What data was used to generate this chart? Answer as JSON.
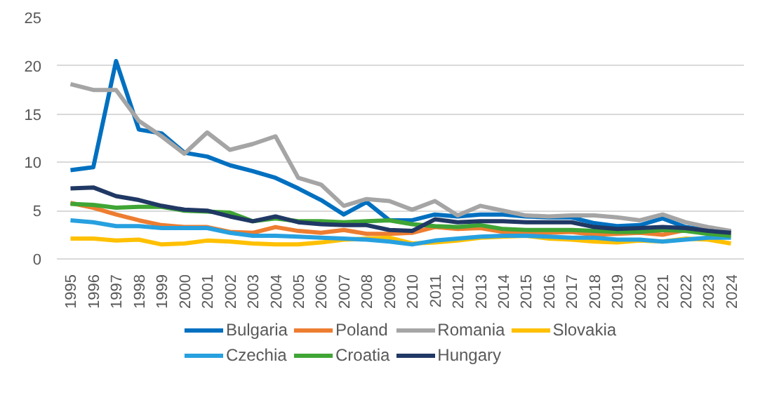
{
  "chart_data": {
    "type": "line",
    "categories": [
      "1995",
      "1996",
      "1997",
      "1998",
      "1999",
      "2000",
      "2001",
      "2002",
      "2003",
      "2004",
      "2005",
      "2006",
      "2007",
      "2008",
      "2009",
      "2010",
      "2011",
      "2012",
      "2013",
      "2014",
      "2015",
      "2016",
      "2017",
      "2018",
      "2019",
      "2020",
      "2021",
      "2022",
      "2023",
      "2024"
    ],
    "ylim": [
      0,
      25
    ],
    "yticks": [
      0,
      5,
      10,
      15,
      20,
      25
    ],
    "grid": "y",
    "legend": "bottom",
    "line_style": "solid",
    "marker": "none",
    "series": [
      {
        "name": "Bulgaria",
        "color": "#0070c0",
        "values": [
          9.2,
          9.5,
          20.5,
          13.4,
          13.0,
          11.0,
          10.6,
          9.7,
          9.1,
          8.4,
          7.3,
          6.1,
          4.6,
          5.9,
          4.0,
          4.0,
          4.6,
          4.4,
          4.6,
          4.6,
          4.4,
          4.3,
          4.3,
          3.7,
          3.4,
          3.5,
          4.2,
          3.3,
          3.0,
          2.8
        ]
      },
      {
        "name": "Poland",
        "color": "#ed7d31",
        "values": [
          5.8,
          5.3,
          4.6,
          4.0,
          3.5,
          3.3,
          3.3,
          2.8,
          2.7,
          3.3,
          2.9,
          2.7,
          3.0,
          2.6,
          2.6,
          2.7,
          3.3,
          3.1,
          3.2,
          2.8,
          2.7,
          2.7,
          2.8,
          2.5,
          2.6,
          2.7,
          2.5,
          3.0,
          3.0,
          2.6
        ]
      },
      {
        "name": "Romania",
        "color": "#a5a5a5",
        "values": [
          18.1,
          17.5,
          17.5,
          14.3,
          12.7,
          10.9,
          13.1,
          11.3,
          11.9,
          12.7,
          8.4,
          7.7,
          5.5,
          6.2,
          6.0,
          5.1,
          6.0,
          4.5,
          5.5,
          5.0,
          4.5,
          4.4,
          4.5,
          4.5,
          4.3,
          4.0,
          4.6,
          3.8,
          3.3,
          2.9
        ]
      },
      {
        "name": "Slovakia",
        "color": "#ffc000",
        "values": [
          2.1,
          2.1,
          1.9,
          2.0,
          1.5,
          1.6,
          1.9,
          1.8,
          1.6,
          1.5,
          1.5,
          1.7,
          2.0,
          2.1,
          2.2,
          1.6,
          1.7,
          1.9,
          2.2,
          2.3,
          2.4,
          2.1,
          2.0,
          1.8,
          1.7,
          1.9,
          1.8,
          2.1,
          2.0,
          1.6
        ]
      },
      {
        "name": "Czechia",
        "color": "#27a0df",
        "values": [
          4.0,
          3.8,
          3.4,
          3.4,
          3.2,
          3.2,
          3.2,
          2.7,
          2.4,
          2.4,
          2.3,
          2.2,
          2.1,
          2.0,
          1.8,
          1.5,
          1.9,
          2.1,
          2.3,
          2.4,
          2.4,
          2.3,
          2.2,
          2.2,
          2.0,
          2.0,
          1.8,
          2.0,
          2.2,
          2.2
        ]
      },
      {
        "name": "Croatia",
        "color": "#3fa535",
        "values": [
          5.7,
          5.6,
          5.3,
          5.4,
          5.4,
          5.0,
          4.9,
          4.8,
          3.9,
          4.2,
          3.9,
          3.9,
          3.8,
          3.9,
          4.0,
          3.6,
          3.4,
          3.3,
          3.5,
          3.1,
          3.0,
          3.0,
          3.0,
          2.9,
          2.8,
          2.8,
          3.0,
          2.9,
          2.6,
          2.4
        ]
      },
      {
        "name": "Hungary",
        "color": "#203864",
        "values": [
          7.3,
          7.4,
          6.5,
          6.1,
          5.5,
          5.1,
          5.0,
          4.4,
          3.9,
          4.4,
          3.8,
          3.6,
          3.5,
          3.5,
          3.0,
          2.9,
          4.1,
          3.8,
          3.9,
          3.9,
          3.8,
          3.8,
          3.8,
          3.3,
          3.1,
          3.2,
          3.3,
          3.2,
          2.9,
          2.7
        ]
      }
    ]
  }
}
